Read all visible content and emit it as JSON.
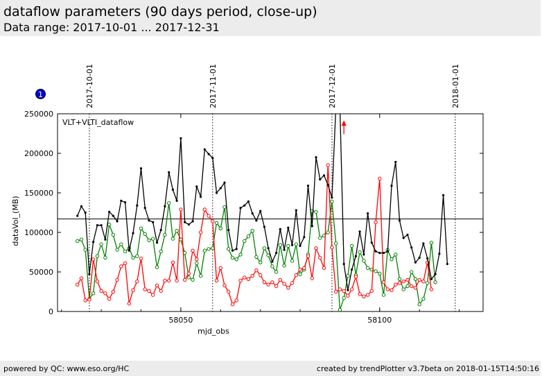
{
  "header": {
    "title": "dataflow parameters (90 days period, close-up)",
    "subtitle": "Data range: 2017-10-01 ... 2017-12-31"
  },
  "badge": {
    "label": "1",
    "color": "#0000dd"
  },
  "footer": {
    "left": "powered by QC: www.eso.org/HC",
    "right": "created by trendPlotter v3.7beta on 2018-01-15T14:50:16"
  },
  "chart_data": {
    "type": "line",
    "panel_label": "VLT+VLTI_dataflow",
    "xlabel": "mjd_obs",
    "ylabel": "dataVol_(MB)",
    "xlim": [
      58019,
      58126
    ],
    "ylim": [
      0,
      250000
    ],
    "xticks": [
      58050,
      58100
    ],
    "xtick_labels": [
      "58050",
      "58100"
    ],
    "yticks": [
      0,
      50000,
      100000,
      150000,
      200000,
      250000
    ],
    "ytick_labels": [
      "0",
      "50000",
      "100000",
      "150000",
      "200000",
      "250000"
    ],
    "reference_line": 117000,
    "date_markers": [
      {
        "label": "2017-10-01",
        "x": 58027
      },
      {
        "label": "2017-11-01",
        "x": 58058
      },
      {
        "label": "2017-12-01",
        "x": 58088
      },
      {
        "label": "2018-01-01",
        "x": 58119
      }
    ],
    "colors": {
      "total": "#000000",
      "green": "#008000",
      "red": "#ff0000",
      "marker_fill": "#ffffff"
    },
    "x": [
      58024,
      58025,
      58026,
      58027,
      58028,
      58029,
      58030,
      58031,
      58032,
      58033,
      58034,
      58035,
      58036,
      58037,
      58038,
      58039,
      58040,
      58041,
      58042,
      58043,
      58044,
      58045,
      58046,
      58047,
      58048,
      58049,
      58050,
      58051,
      58052,
      58053,
      58054,
      58055,
      58056,
      58057,
      58058,
      58059,
      58060,
      58061,
      58062,
      58063,
      58064,
      58065,
      58066,
      58067,
      58068,
      58069,
      58070,
      58071,
      58072,
      58073,
      58074,
      58075,
      58076,
      58077,
      58078,
      58079,
      58080,
      58081,
      58082,
      58083,
      58084,
      58085,
      58086,
      58087,
      58088,
      58089,
      58090,
      58091,
      58092,
      58093,
      58094,
      58095,
      58096,
      58097,
      58098,
      58099,
      58100,
      58101,
      58102,
      58103,
      58104,
      58105,
      58106,
      58107,
      58108,
      58109,
      58110,
      58111,
      58112,
      58113,
      58114,
      58115,
      58116,
      58117
    ],
    "series": [
      {
        "key": "total",
        "values": [
          121000,
          133000,
          125000,
          47000,
          88000,
          109000,
          109000,
          91000,
          126000,
          121000,
          114000,
          140000,
          138000,
          77000,
          99000,
          134000,
          181000,
          131000,
          115000,
          113000,
          87000,
          103000,
          133000,
          176000,
          154000,
          140000,
          219000,
          113000,
          110000,
          114000,
          158000,
          145000,
          205000,
          199000,
          194000,
          150000,
          156000,
          163000,
          103000,
          77000,
          79000,
          131000,
          134000,
          139000,
          124000,
          115000,
          127000,
          107000,
          80000,
          63000,
          74000,
          104000,
          78000,
          106000,
          84000,
          128000,
          83000,
          94000,
          159000,
          108000,
          195000,
          167000,
          172000,
          160000,
          144000,
          260000,
          260000,
          60000,
          27000,
          53000,
          70000,
          101000,
          72000,
          124000,
          87000,
          76000,
          74000,
          74000,
          76000,
          159000,
          189000,
          115000,
          93000,
          97000,
          81000,
          62000,
          68000,
          86000,
          67000,
          41000,
          47000,
          73000,
          147000,
          60000
        ]
      },
      {
        "key": "green",
        "values": [
          89000,
          91000,
          78000,
          16000,
          23000,
          70000,
          85000,
          68000,
          110000,
          97000,
          78000,
          85000,
          76000,
          80000,
          68000,
          70000,
          105000,
          98000,
          90000,
          92000,
          56000,
          76000,
          97000,
          137000,
          92000,
          102000,
          91000,
          74000,
          43000,
          40000,
          61000,
          45000,
          77000,
          79000,
          80000,
          112000,
          105000,
          132000,
          79000,
          68000,
          66000,
          72000,
          89000,
          95000,
          102000,
          69000,
          62000,
          80000,
          71000,
          57000,
          50000,
          84000,
          58000,
          83000,
          64000,
          85000,
          47000,
          53000,
          72000,
          127000,
          126000,
          93000,
          96000,
          100000,
          139000,
          86000,
          2000,
          17000,
          45000,
          83000,
          46000,
          75000,
          64000,
          55000,
          53000,
          51000,
          48000,
          21000,
          78000,
          66000,
          72000,
          41000,
          28000,
          32000,
          50000,
          41000,
          9000,
          16000,
          36000,
          87000,
          37000,
          null,
          null,
          null
        ]
      },
      {
        "key": "red",
        "values": [
          34000,
          42000,
          14000,
          15000,
          66000,
          38000,
          26000,
          23000,
          16000,
          25000,
          40000,
          57000,
          61000,
          10000,
          27000,
          38000,
          67000,
          28000,
          26000,
          21000,
          33000,
          26000,
          39000,
          39000,
          62000,
          39000,
          129000,
          40000,
          48000,
          77000,
          66000,
          100000,
          129000,
          121000,
          114000,
          39000,
          55000,
          33000,
          25000,
          9000,
          14000,
          39000,
          43000,
          41000,
          45000,
          52000,
          46000,
          37000,
          34000,
          37000,
          32000,
          40000,
          35000,
          30000,
          36000,
          46000,
          53000,
          55000,
          70000,
          42000,
          80000,
          68000,
          55000,
          185000,
          81000,
          25000,
          28000,
          26000,
          20000,
          28000,
          44000,
          22000,
          19000,
          21000,
          26000,
          113000,
          168000,
          37000,
          28000,
          27000,
          34000,
          36000,
          38000,
          40000,
          32000,
          30000,
          40000,
          38000,
          62000,
          28000,
          null,
          null,
          null,
          null
        ]
      }
    ],
    "outliers": [
      {
        "series": "red",
        "x": 58091,
        "y": 240000
      }
    ]
  }
}
